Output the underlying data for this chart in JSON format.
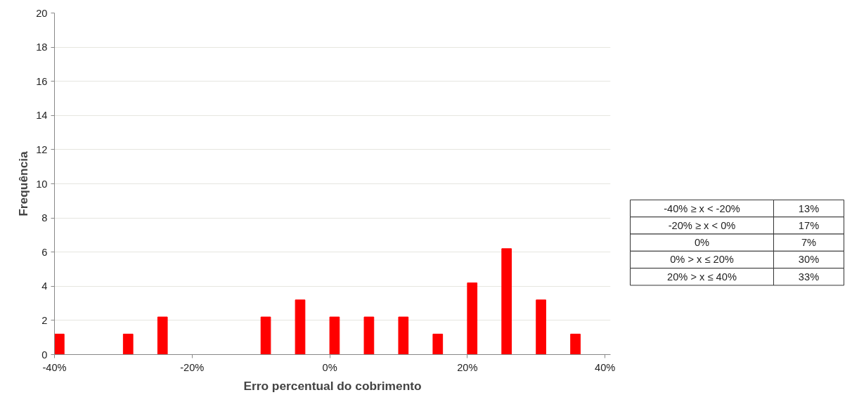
{
  "chart_data": {
    "type": "bar",
    "xlabel": "Erro percentual do cobrimento",
    "ylabel": "Frequência",
    "x": [
      -39.3,
      -29.3,
      -24.3,
      -9.3,
      -4.3,
      0.7,
      5.7,
      10.7,
      15.7,
      20.7,
      25.7,
      30.7,
      35.7
    ],
    "values": [
      1.2,
      1.2,
      2.2,
      2.2,
      3.2,
      2.2,
      2.2,
      2.2,
      1.2,
      4.2,
      6.2,
      3.2,
      1.2
    ],
    "color": "#ff0000",
    "xlim": [
      -40,
      40.8
    ],
    "xticks": [
      {
        "value": -40,
        "label": "-40%"
      },
      {
        "value": -20,
        "label": "-20%"
      },
      {
        "value": 0,
        "label": "0%"
      },
      {
        "value": 20,
        "label": "20%"
      },
      {
        "value": 40,
        "label": "40%"
      }
    ],
    "ylim": [
      0,
      20
    ],
    "yticks": [
      0,
      2,
      4,
      6,
      8,
      10,
      12,
      14,
      16,
      18,
      20
    ],
    "grid": "y",
    "annotations": [
      "-40% ≥ x < -20%",
      "13%",
      "-20% ≥ x < 0%",
      "17%",
      "0%",
      "7%",
      "0% > x ≤ 20%",
      "30%",
      "20% > x ≤ 40%",
      "33%"
    ]
  }
}
